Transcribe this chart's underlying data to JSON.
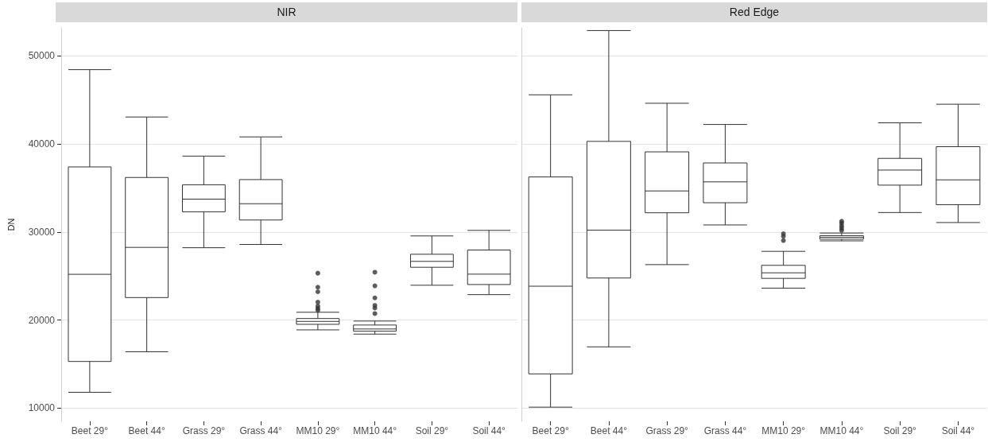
{
  "chart_data": [
    {
      "type": "box",
      "title": "NIR",
      "ylabel": "DN",
      "categories": [
        "Beet 29°",
        "Beet 44°",
        "Grass 29°",
        "Grass 44°",
        "MM10 29°",
        "MM10 44°",
        "Soil 29°",
        "Soil 44°"
      ],
      "ylim": [
        8500,
        53200
      ],
      "yticks": [
        10000,
        20000,
        30000,
        40000,
        50000
      ],
      "grid": "y",
      "boxes": [
        {
          "low": 11800,
          "q1": 15300,
          "median": 25200,
          "q3": 37400,
          "high": 48450
        },
        {
          "low": 16400,
          "q1": 22560,
          "median": 28260,
          "q3": 36200,
          "high": 43070
        },
        {
          "low": 28220,
          "q1": 32300,
          "median": 33740,
          "q3": 35370,
          "high": 38630
        },
        {
          "low": 28590,
          "q1": 31370,
          "median": 33220,
          "q3": 35960,
          "high": 40810
        },
        {
          "low": 18890,
          "q1": 19520,
          "median": 19850,
          "q3": 20180,
          "high": 20890,
          "outliers": [
            25330,
            23740,
            23220,
            22040,
            21590,
            21330,
            21110
          ]
        },
        {
          "low": 18410,
          "q1": 18740,
          "median": 18990,
          "q3": 19440,
          "high": 19890,
          "outliers": [
            25440,
            23890,
            22520,
            21670,
            21370,
            20740
          ]
        },
        {
          "low": 23960,
          "q1": 26000,
          "median": 26670,
          "q3": 27480,
          "high": 29560
        },
        {
          "low": 22890,
          "q1": 24040,
          "median": 25220,
          "q3": 27960,
          "high": 30190
        }
      ]
    },
    {
      "type": "box",
      "title": "Red Edge",
      "categories": [
        "Beet 29°",
        "Beet 44°",
        "Grass 29°",
        "Grass 44°",
        "MM10 29°",
        "MM10 44°",
        "Soil 29°",
        "Soil 44°"
      ],
      "ylim": [
        8500,
        53200
      ],
      "yticks": [
        10000,
        20000,
        30000,
        40000,
        50000
      ],
      "grid": "y",
      "tick_labels": "x",
      "boxes": [
        {
          "low": 10110,
          "q1": 13890,
          "median": 23850,
          "q3": 36260,
          "high": 45590
        },
        {
          "low": 16960,
          "q1": 24780,
          "median": 30220,
          "q3": 40300,
          "high": 52890
        },
        {
          "low": 26300,
          "q1": 32190,
          "median": 34670,
          "q3": 39110,
          "high": 44630
        },
        {
          "low": 30810,
          "q1": 33330,
          "median": 35700,
          "q3": 37850,
          "high": 42220
        },
        {
          "low": 23630,
          "q1": 24740,
          "median": 25370,
          "q3": 26220,
          "high": 27810,
          "outliers": [
            29810,
            29520,
            29040
          ]
        },
        {
          "low": 29000,
          "q1": 29190,
          "median": 29410,
          "q3": 29590,
          "high": 29890,
          "outliers": [
            31220,
            31000,
            30700,
            30440,
            30190
          ]
        },
        {
          "low": 32220,
          "q1": 35330,
          "median": 37040,
          "q3": 38370,
          "high": 42410
        },
        {
          "low": 31080,
          "q1": 33110,
          "median": 35930,
          "q3": 39700,
          "high": 44520
        }
      ]
    }
  ]
}
